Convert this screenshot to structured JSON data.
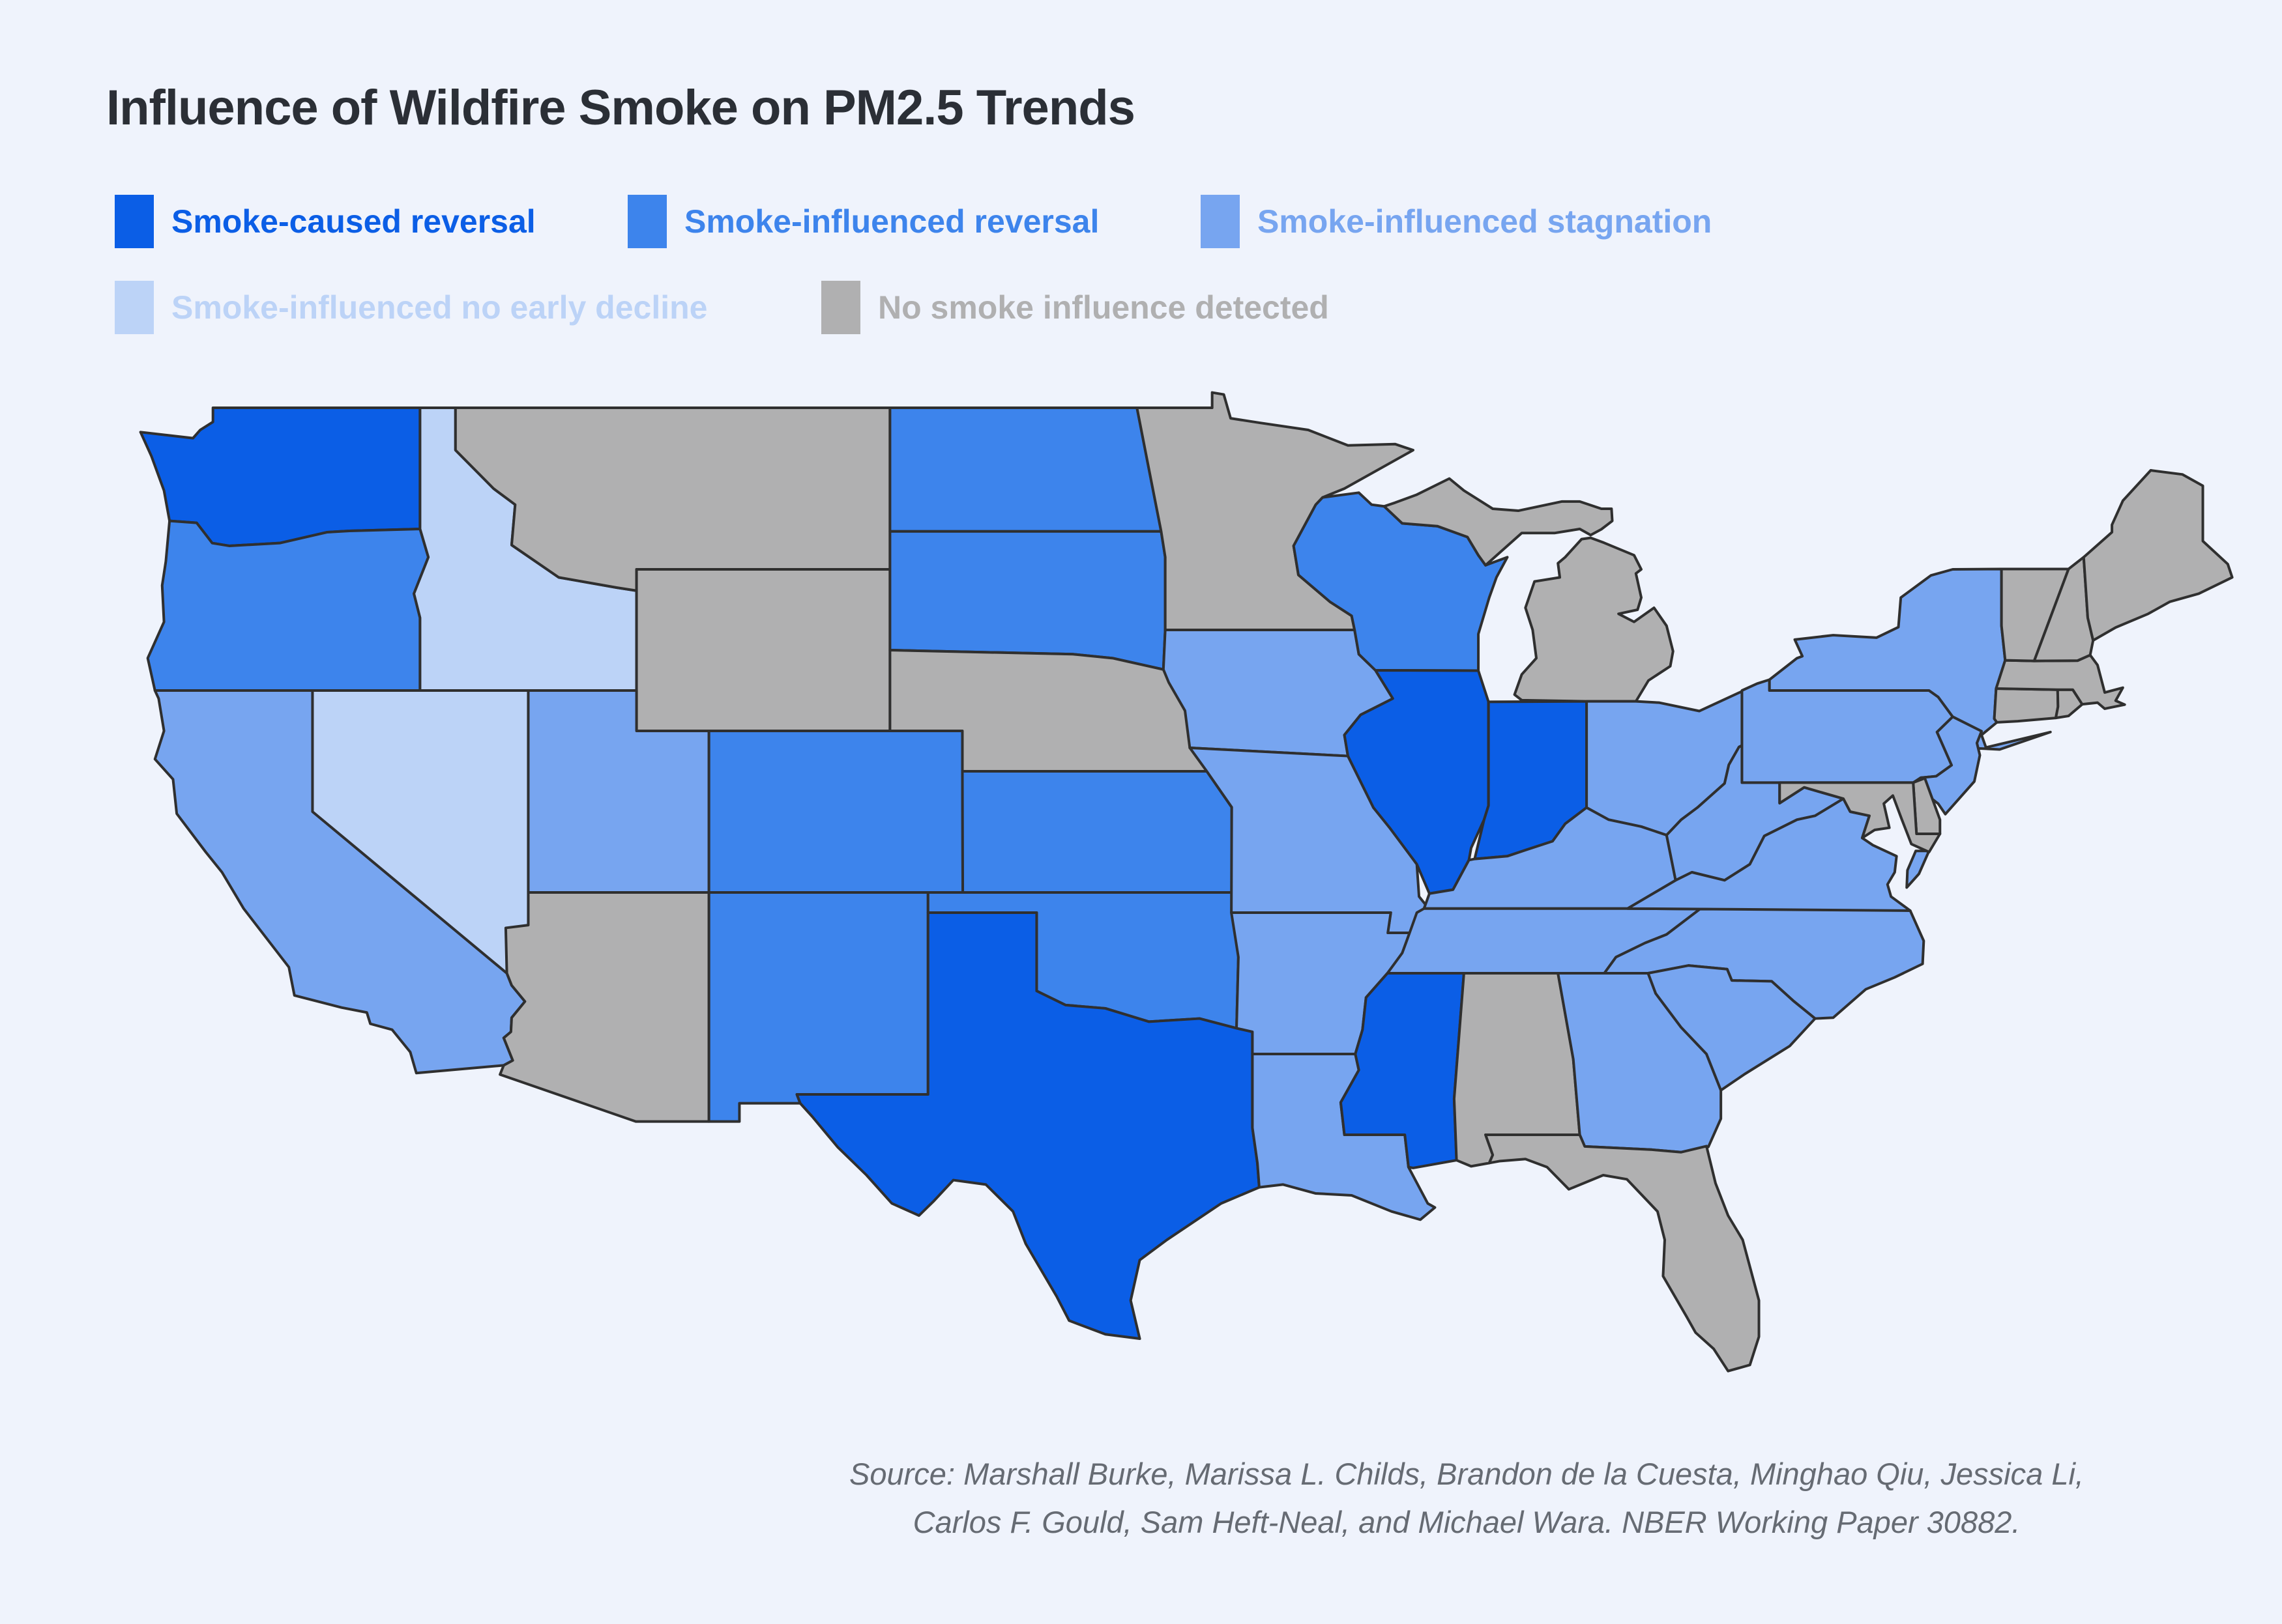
{
  "chart_data": {
    "type": "choropleth",
    "title": "Influence of Wildfire Smoke on PM2.5 Trends",
    "legend": [
      {
        "label": "Smoke-caused reversal",
        "color": "#0b5ee6"
      },
      {
        "label": "Smoke-influenced reversal",
        "color": "#3d84ec"
      },
      {
        "label": "Smoke-influenced stagnation",
        "color": "#77a5f0"
      },
      {
        "label": "Smoke-influenced no early decline",
        "color": "#bcd3f7"
      },
      {
        "label": "No smoke influence detected",
        "color": "#b0b0b1"
      }
    ],
    "border_color": "#2f2f2f",
    "background": "#eff3fc",
    "states": [
      {
        "id": "WA",
        "name": "Washington",
        "category": 0
      },
      {
        "id": "OR",
        "name": "Oregon",
        "category": 1
      },
      {
        "id": "CA",
        "name": "California",
        "category": 2
      },
      {
        "id": "NV",
        "name": "Nevada",
        "category": 3
      },
      {
        "id": "ID",
        "name": "Idaho",
        "category": 3
      },
      {
        "id": "MT",
        "name": "Montana",
        "category": 4
      },
      {
        "id": "WY",
        "name": "Wyoming",
        "category": 4
      },
      {
        "id": "UT",
        "name": "Utah",
        "category": 2
      },
      {
        "id": "CO",
        "name": "Colorado",
        "category": 1
      },
      {
        "id": "AZ",
        "name": "Arizona",
        "category": 4
      },
      {
        "id": "NM",
        "name": "New Mexico",
        "category": 1
      },
      {
        "id": "ND",
        "name": "North Dakota",
        "category": 1
      },
      {
        "id": "SD",
        "name": "South Dakota",
        "category": 1
      },
      {
        "id": "NE",
        "name": "Nebraska",
        "category": 4
      },
      {
        "id": "KS",
        "name": "Kansas",
        "category": 1
      },
      {
        "id": "OK",
        "name": "Oklahoma",
        "category": 1
      },
      {
        "id": "TX",
        "name": "Texas",
        "category": 0
      },
      {
        "id": "MN",
        "name": "Minnesota",
        "category": 4
      },
      {
        "id": "IA",
        "name": "Iowa",
        "category": 2
      },
      {
        "id": "MO",
        "name": "Missouri",
        "category": 2
      },
      {
        "id": "AR",
        "name": "Arkansas",
        "category": 2
      },
      {
        "id": "LA",
        "name": "Louisiana",
        "category": 2
      },
      {
        "id": "MS",
        "name": "Mississippi",
        "category": 0
      },
      {
        "id": "AL",
        "name": "Alabama",
        "category": 4
      },
      {
        "id": "GA",
        "name": "Georgia",
        "category": 2
      },
      {
        "id": "FL",
        "name": "Florida",
        "category": 4
      },
      {
        "id": "WI",
        "name": "Wisconsin",
        "category": 1
      },
      {
        "id": "IL",
        "name": "Illinois",
        "category": 0
      },
      {
        "id": "IN",
        "name": "Indiana",
        "category": 0
      },
      {
        "id": "MI",
        "name": "Michigan",
        "category": 4
      },
      {
        "id": "OH",
        "name": "Ohio",
        "category": 2
      },
      {
        "id": "KY",
        "name": "Kentucky",
        "category": 2
      },
      {
        "id": "TN",
        "name": "Tennessee",
        "category": 2
      },
      {
        "id": "WV",
        "name": "West Virginia",
        "category": 2
      },
      {
        "id": "VA",
        "name": "Virginia",
        "category": 2
      },
      {
        "id": "NC",
        "name": "North Carolina",
        "category": 2
      },
      {
        "id": "SC",
        "name": "South Carolina",
        "category": 2
      },
      {
        "id": "PA",
        "name": "Pennsylvania",
        "category": 2
      },
      {
        "id": "NY",
        "name": "New York",
        "category": 2
      },
      {
        "id": "NJ",
        "name": "New Jersey",
        "category": 2
      },
      {
        "id": "DE",
        "name": "Delaware",
        "category": 4
      },
      {
        "id": "MD",
        "name": "Maryland",
        "category": 4
      },
      {
        "id": "CT",
        "name": "Connecticut",
        "category": 4
      },
      {
        "id": "RI",
        "name": "Rhode Island",
        "category": 4
      },
      {
        "id": "MA",
        "name": "Massachusetts",
        "category": 4
      },
      {
        "id": "VT",
        "name": "Vermont",
        "category": 4
      },
      {
        "id": "NH",
        "name": "New Hampshire",
        "category": 4
      },
      {
        "id": "ME",
        "name": "Maine",
        "category": 4
      }
    ]
  },
  "source": {
    "line1": "Source: Marshall Burke, Marissa L. Childs, Brandon de la Cuesta, Minghao Qiu, Jessica Li,",
    "line2": "Carlos F. Gould, Sam Heft-Neal, and Michael Wara. NBER Working Paper 30882."
  }
}
